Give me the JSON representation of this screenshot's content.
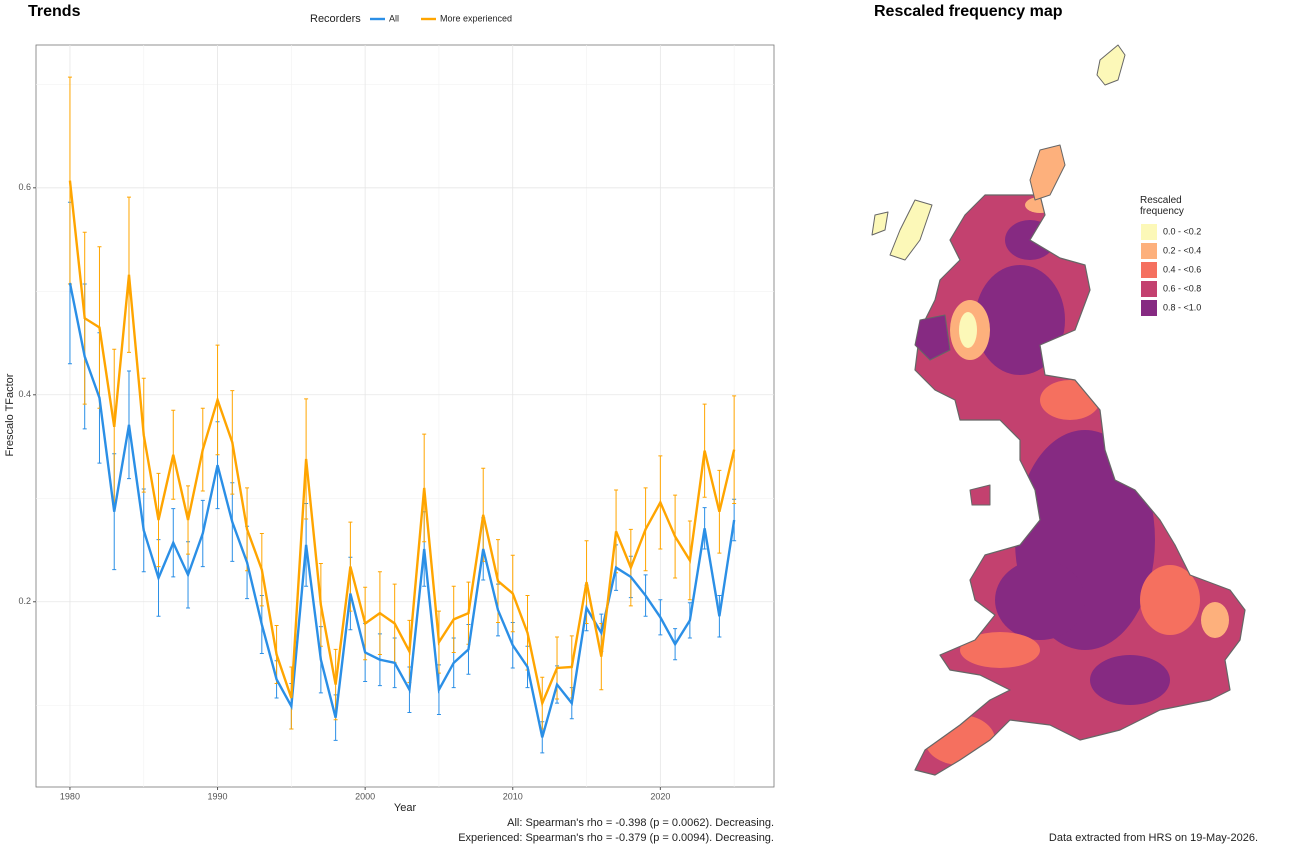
{
  "chart_data": [
    {
      "type": "line",
      "title": "Trends",
      "legend_title": "Recorders",
      "x_label": "Year",
      "y_label": "Frescalo TFactor",
      "x": [
        1980,
        1981,
        1982,
        1983,
        1984,
        1985,
        1986,
        1987,
        1988,
        1989,
        1990,
        1991,
        1992,
        1993,
        1994,
        1995,
        1996,
        1997,
        1998,
        1999,
        2000,
        2001,
        2002,
        2003,
        2004,
        2005,
        2006,
        2007,
        2008,
        2009,
        2010,
        2011,
        2012,
        2013,
        2014,
        2015,
        2016,
        2017,
        2018,
        2019,
        2020,
        2021,
        2022,
        2023,
        2024,
        2025
      ],
      "series": [
        {
          "name": "All",
          "color": "#2b8fe6",
          "values": [
            0.508,
            0.437,
            0.397,
            0.287,
            0.371,
            0.269,
            0.223,
            0.257,
            0.226,
            0.266,
            0.332,
            0.277,
            0.238,
            0.178,
            0.125,
            0.099,
            0.255,
            0.144,
            0.088,
            0.208,
            0.151,
            0.144,
            0.141,
            0.115,
            0.251,
            0.115,
            0.141,
            0.154,
            0.251,
            0.192,
            0.158,
            0.137,
            0.069,
            0.12,
            0.102,
            0.194,
            0.17,
            0.233,
            0.224,
            0.206,
            0.185,
            0.159,
            0.182,
            0.271,
            0.186,
            0.279
          ],
          "errors": [
            0.078,
            0.07,
            0.063,
            0.056,
            0.052,
            0.04,
            0.037,
            0.033,
            0.032,
            0.032,
            0.042,
            0.038,
            0.035,
            0.028,
            0.018,
            0.022,
            0.04,
            0.032,
            0.022,
            0.035,
            0.028,
            0.025,
            0.024,
            0.022,
            0.036,
            0.024,
            0.024,
            0.024,
            0.03,
            0.025,
            0.022,
            0.02,
            0.015,
            0.018,
            0.015,
            0.022,
            0.018,
            0.022,
            0.02,
            0.02,
            0.017,
            0.015,
            0.017,
            0.02,
            0.02,
            0.02
          ]
        },
        {
          "name": "More experienced",
          "color": "#ffa500",
          "values": [
            0.607,
            0.474,
            0.465,
            0.369,
            0.516,
            0.361,
            0.279,
            0.342,
            0.279,
            0.347,
            0.395,
            0.354,
            0.27,
            0.231,
            0.149,
            0.107,
            0.338,
            0.197,
            0.12,
            0.234,
            0.179,
            0.189,
            0.179,
            0.152,
            0.31,
            0.161,
            0.183,
            0.189,
            0.284,
            0.22,
            0.208,
            0.17,
            0.102,
            0.136,
            0.137,
            0.219,
            0.147,
            0.268,
            0.233,
            0.27,
            0.296,
            0.263,
            0.24,
            0.346,
            0.287,
            0.347
          ],
          "errors": [
            0.1,
            0.083,
            0.078,
            0.075,
            0.075,
            0.055,
            0.045,
            0.043,
            0.033,
            0.04,
            0.053,
            0.05,
            0.04,
            0.035,
            0.028,
            0.03,
            0.058,
            0.04,
            0.034,
            0.043,
            0.035,
            0.04,
            0.038,
            0.03,
            0.052,
            0.03,
            0.032,
            0.03,
            0.045,
            0.04,
            0.037,
            0.036,
            0.025,
            0.03,
            0.03,
            0.04,
            0.032,
            0.04,
            0.037,
            0.04,
            0.045,
            0.04,
            0.038,
            0.045,
            0.04,
            0.052
          ]
        }
      ],
      "xlim": [
        1977.7,
        2027.7
      ],
      "xticks": [
        1980,
        1990,
        2000,
        2010,
        2020
      ],
      "minor_xticks": [
        1985,
        1995,
        2005,
        2015,
        2025
      ],
      "ylim": [
        0.021,
        0.738
      ],
      "yticks": [
        0.2,
        0.4,
        0.6
      ],
      "minor_yticks": [
        0.1,
        0.3,
        0.5,
        0.7
      ],
      "grid": true,
      "notes": [
        "All: Spearman's rho = -0.398 (p = 0.0062). Decreasing.",
        "Experienced: Spearman's rho = -0.379 (p = 0.0094). Decreasing."
      ]
    },
    {
      "type": "map",
      "title": "Rescaled frequency map",
      "legend_title": "Rescaled frequency",
      "legend": [
        {
          "label": "0.0 - <0.2",
          "color": "#fcf8b8"
        },
        {
          "label": "0.2 - <0.4",
          "color": "#fdb07c"
        },
        {
          "label": "0.4 - <0.6",
          "color": "#f5705f"
        },
        {
          "label": "0.6 - <0.8",
          "color": "#c3416f"
        },
        {
          "label": "0.8 - <1.0",
          "color": "#862a82"
        }
      ],
      "note": "Data extracted from HRS on 19-May-2026."
    }
  ]
}
